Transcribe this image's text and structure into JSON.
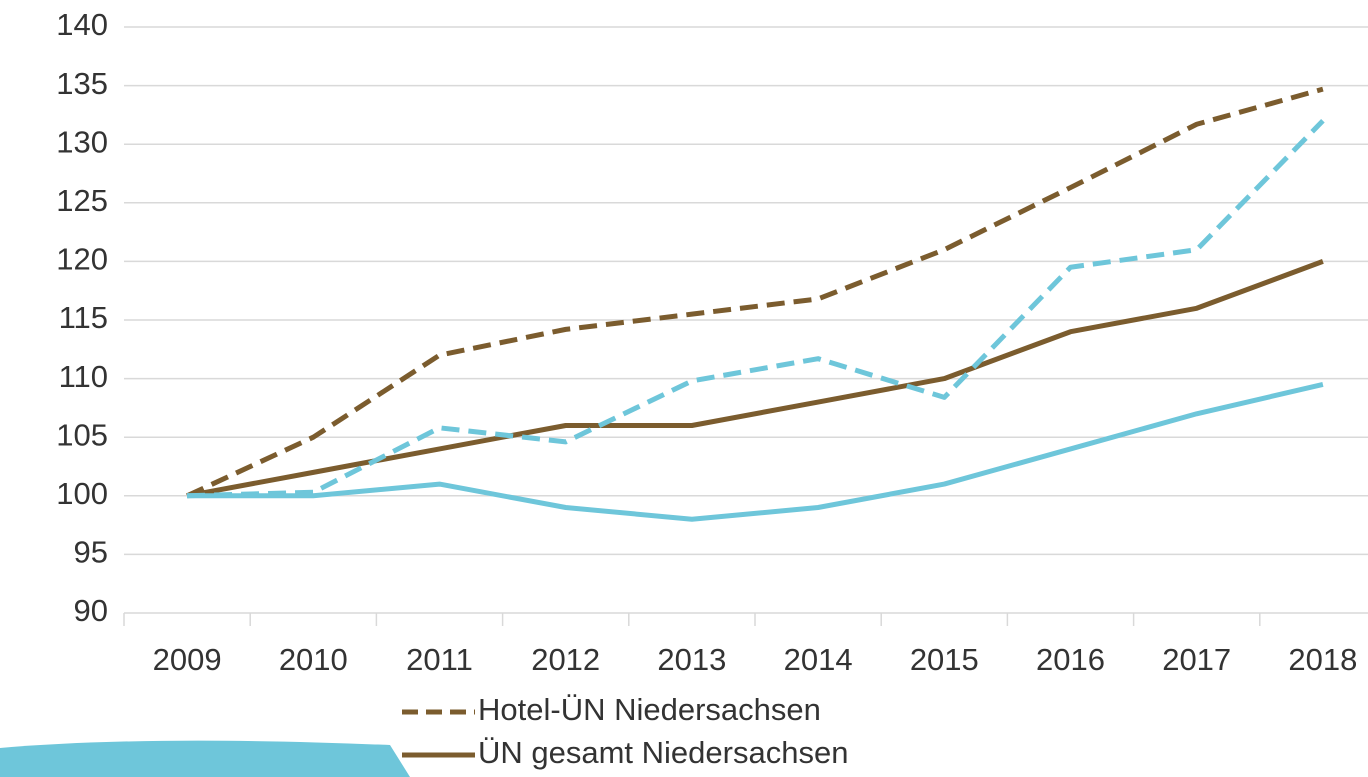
{
  "chart_data": {
    "type": "line",
    "categories": [
      "2009",
      "2010",
      "2011",
      "2012",
      "2013",
      "2014",
      "2015",
      "2016",
      "2017",
      "2018"
    ],
    "series": [
      {
        "name": "Hotel-ÜN Niedersachsen",
        "color": "#7b5c2e",
        "dashed": true,
        "values": [
          100,
          105,
          112,
          114.2,
          115.5,
          116.8,
          121,
          126.3,
          131.7,
          134.7
        ]
      },
      {
        "name": "ÜN gesamt Niedersachsen",
        "color": "#7b5c2e",
        "dashed": false,
        "values": [
          100,
          102,
          104,
          106,
          106,
          108,
          110,
          114,
          116,
          120
        ]
      },
      {
        "color": "#6ec6da",
        "dashed": true,
        "values": [
          100,
          100.3,
          105.8,
          104.6,
          109.8,
          111.7,
          108.4,
          119.5,
          121,
          132
        ]
      },
      {
        "color": "#6ec6da",
        "dashed": false,
        "values": [
          100,
          100,
          101,
          99,
          98,
          99,
          101,
          104,
          107,
          109.5
        ]
      }
    ],
    "ylim": [
      90,
      140
    ],
    "yticks": [
      90,
      95,
      100,
      105,
      110,
      115,
      120,
      125,
      130,
      135,
      140
    ],
    "grid": true
  }
}
